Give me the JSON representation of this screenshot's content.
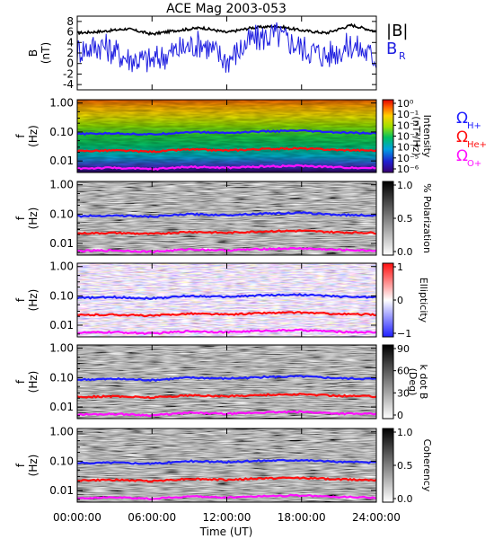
{
  "chart_data": {
    "title": "ACE Mag 2003-053",
    "xlabel": "Time (UT)",
    "x_ticks": [
      "00:00:00",
      "06:00:00",
      "12:00:00",
      "18:00:00",
      "24:00:00"
    ],
    "x_range_hours": [
      0,
      24
    ],
    "panels": [
      {
        "type": "line",
        "ylabel": "B",
        "yunit": "(nT)",
        "ylim": [
          -5,
          9
        ],
        "y_ticks": [
          -4,
          -2,
          0,
          2,
          4,
          6,
          8
        ],
        "legend": [
          {
            "label": "|B|",
            "color": "#000000"
          },
          {
            "label": "B",
            "sub": "R",
            "color": "#2020e0"
          }
        ],
        "series": [
          {
            "name": "|B|",
            "color": "#000000",
            "x": [
              0,
              2,
              4,
              6,
              8,
              10,
              12,
              14,
              16,
              18,
              20,
              22,
              24
            ],
            "y": [
              5.8,
              6.1,
              6.6,
              5.6,
              6.3,
              6.8,
              5.9,
              6.8,
              7.1,
              6.3,
              5.8,
              7.3,
              6.1
            ]
          },
          {
            "name": "B_R",
            "color": "#2020e0",
            "x": [
              0,
              2,
              4,
              6,
              8,
              10,
              12,
              14,
              16,
              18,
              20,
              22,
              24
            ],
            "y": [
              2.5,
              3.5,
              1.0,
              0.5,
              2.5,
              4.0,
              0.5,
              4.5,
              5.5,
              3.0,
              1.5,
              3.5,
              1.0
            ]
          }
        ]
      },
      {
        "type": "heatmap",
        "ylabel": "f",
        "yunit": "(Hz)",
        "y_scale": "log",
        "y_ticks": [
          "1.00",
          "0.10",
          "0.01"
        ],
        "colorbar_label": "Intensity",
        "colorbar_unit": "(nT²/Hz)",
        "colorbar_ticks": [
          "10⁰",
          "10⁻¹",
          "10⁻²",
          "10⁻³",
          "10⁻⁴",
          "10⁻⁵",
          "10⁻⁶"
        ],
        "colormap": "rainbow"
      },
      {
        "type": "heatmap",
        "ylabel": "f",
        "yunit": "(Hz)",
        "y_scale": "log",
        "y_ticks": [
          "1.00",
          "0.10",
          "0.01"
        ],
        "colorbar_label": "% Polarization",
        "colorbar_ticks": [
          "1.0",
          "0.5",
          "0.0"
        ],
        "colormap": "gray"
      },
      {
        "type": "heatmap",
        "ylabel": "f",
        "yunit": "(Hz)",
        "y_scale": "log",
        "y_ticks": [
          "1.00",
          "0.10",
          "0.01"
        ],
        "colorbar_label": "Ellipticity",
        "colorbar_ticks": [
          "1",
          "0",
          "−1"
        ],
        "colormap": "blue-white-red"
      },
      {
        "type": "heatmap",
        "ylabel": "f",
        "yunit": "(Hz)",
        "y_scale": "log",
        "y_ticks": [
          "1.00",
          "0.10",
          "0.01"
        ],
        "colorbar_label": "k dot B",
        "colorbar_unit": "(Deg)",
        "colorbar_ticks": [
          "90",
          "60",
          "30",
          "0"
        ],
        "colormap": "gray"
      },
      {
        "type": "heatmap",
        "ylabel": "f",
        "yunit": "(Hz)",
        "y_scale": "log",
        "y_ticks": [
          "1.00",
          "0.10",
          "0.01"
        ],
        "colorbar_label": "Coherency",
        "colorbar_ticks": [
          "1.0",
          "0.5",
          "0.0"
        ],
        "colormap": "gray"
      }
    ],
    "gyrofrequency_legend": [
      {
        "label": "Ω",
        "sub": "H+",
        "color": "#2020ff"
      },
      {
        "label": "Ω",
        "sub": "He+",
        "color": "#ff1010"
      },
      {
        "label": "Ω",
        "sub": "O+",
        "color": "#ff10ff"
      }
    ],
    "gyrofrequency_lines": [
      {
        "name": "ΩH+",
        "color": "#2020ff",
        "x": [
          0,
          3,
          6,
          9,
          12,
          15,
          18,
          21,
          24
        ],
        "y_hz": [
          0.085,
          0.09,
          0.082,
          0.1,
          0.093,
          0.105,
          0.11,
          0.095,
          0.09
        ]
      },
      {
        "name": "ΩHe+",
        "color": "#ff1010",
        "x": [
          0,
          3,
          6,
          9,
          12,
          15,
          18,
          21,
          24
        ],
        "y_hz": [
          0.022,
          0.023,
          0.021,
          0.025,
          0.023,
          0.026,
          0.027,
          0.024,
          0.023
        ]
      },
      {
        "name": "ΩO+",
        "color": "#ff10ff",
        "x": [
          0,
          3,
          6,
          9,
          12,
          15,
          18,
          21,
          24
        ],
        "y_hz": [
          0.0055,
          0.0058,
          0.0052,
          0.0063,
          0.0058,
          0.0065,
          0.0068,
          0.006,
          0.0057
        ]
      }
    ]
  }
}
